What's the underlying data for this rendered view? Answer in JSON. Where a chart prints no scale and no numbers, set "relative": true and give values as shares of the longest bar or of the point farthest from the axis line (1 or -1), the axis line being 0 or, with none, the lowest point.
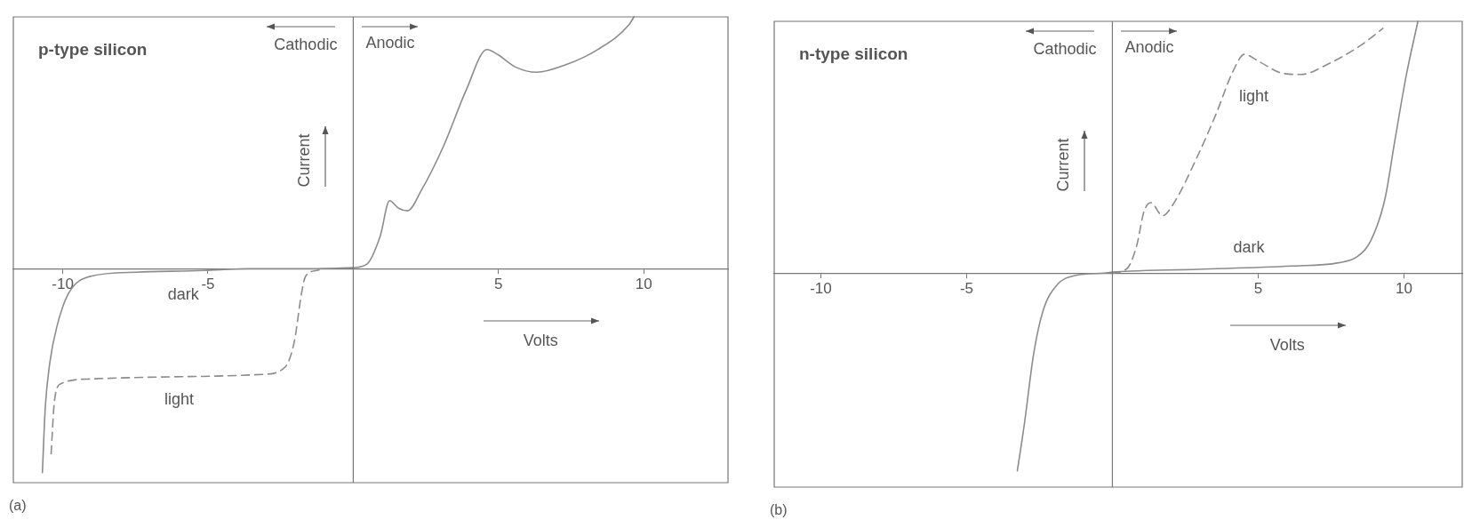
{
  "chart_data": [
    {
      "type": "line",
      "title": "p-type silicon",
      "xlabel": "Volts",
      "ylabel": "Current",
      "relative": true,
      "xlim": [
        -11.7,
        12.9
      ],
      "xticks": [
        -10,
        -5,
        5,
        10
      ],
      "marker": "none",
      "annotations": [
        "Cathodic",
        "Anodic",
        "(a)"
      ],
      "series": [
        {
          "name": "dark",
          "color": "#8c8c8c",
          "line_style": "solid",
          "x": [
            -10.7,
            -10.6,
            -10.44,
            -10.2,
            -9.81,
            -9.03,
            -7.48,
            -5.14,
            -3.58,
            -1.25,
            0,
            0.47,
            0.93,
            1.25,
            1.56,
            1.87,
            2.34,
            3.12,
            3.89,
            4.6,
            4.98,
            5.6,
            6.31,
            7.32,
            8.41,
            9.5,
            9.66
          ],
          "values": [
            -0.81,
            -0.55,
            -0.37,
            -0.23,
            -0.1,
            -0.03,
            -0.014,
            -0.007,
            0,
            0,
            0.004,
            0.018,
            0.13,
            0.27,
            0.24,
            0.23,
            0.31,
            0.49,
            0.71,
            0.87,
            0.85,
            0.8,
            0.78,
            0.81,
            0.87,
            0.97,
            1.0
          ]
        },
        {
          "name": "light",
          "color": "#8c8c8c",
          "line_style": "dashed",
          "x": [
            -10.4,
            -10.28,
            -10.05,
            -9.03,
            -5.92,
            -3.12,
            -2.34,
            -2.02,
            -1.79,
            -1.64,
            -1.25,
            -1.0
          ],
          "values": [
            -0.735,
            -0.52,
            -0.456,
            -0.438,
            -0.429,
            -0.42,
            -0.39,
            -0.285,
            -0.105,
            -0.03,
            -0.007,
            0
          ]
        }
      ]
    },
    {
      "type": "line",
      "title": "n-type silicon",
      "xlabel": "Volts",
      "ylabel": "Current",
      "relative": true,
      "xlim": [
        -11.6,
        12.0
      ],
      "xticks": [
        -10,
        -5,
        5,
        10
      ],
      "marker": "none",
      "annotations": [
        "Cathodic",
        "Anodic",
        "(b)"
      ],
      "series": [
        {
          "name": "dark",
          "color": "#8c8c8c",
          "line_style": "solid",
          "x": [
            -3.26,
            -3.02,
            -2.7,
            -2.38,
            -1.9,
            -1.25,
            -0.29,
            0,
            2.93,
            6.14,
            7.75,
            8.39,
            8.87,
            9.36,
            9.68,
            10.08,
            10.48
          ],
          "values": [
            -0.785,
            -0.6,
            -0.32,
            -0.15,
            -0.047,
            -0.009,
            0,
            0.004,
            0.015,
            0.028,
            0.041,
            0.065,
            0.13,
            0.3,
            0.52,
            0.785,
            1.0
          ]
        },
        {
          "name": "light",
          "color": "#8c8c8c",
          "line_style": "dashed",
          "x": [
            0,
            0.51,
            0.84,
            1.08,
            1.32,
            1.72,
            2.12,
            2.93,
            3.57,
            4.13,
            4.53,
            5.02,
            5.82,
            6.46,
            7.43,
            8.55,
            9.28
          ],
          "values": [
            0,
            0.019,
            0.112,
            0.243,
            0.28,
            0.228,
            0.28,
            0.467,
            0.636,
            0.8,
            0.869,
            0.841,
            0.794,
            0.789,
            0.832,
            0.907,
            0.972
          ]
        }
      ]
    }
  ]
}
